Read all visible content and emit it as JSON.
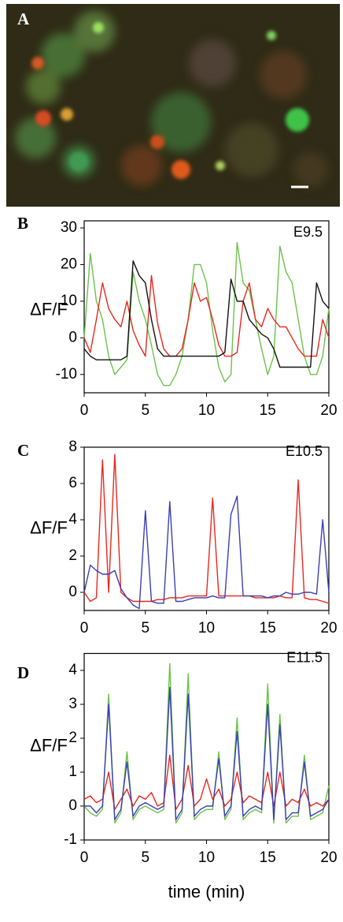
{
  "image_panel": {
    "label": "A"
  },
  "chart_data": [
    {
      "type": "line",
      "panel": "B",
      "label": "E9.5",
      "ylabel": "ΔF/F",
      "xlim": [
        0,
        20
      ],
      "xticks": [
        0,
        5,
        10,
        15,
        20
      ],
      "ylim": [
        -15,
        30
      ],
      "yticks": [
        -10,
        0,
        10,
        20,
        30
      ],
      "x": [
        0,
        0.5,
        1,
        1.5,
        2,
        2.5,
        3,
        3.5,
        4,
        4.5,
        5,
        5.5,
        6,
        6.5,
        7,
        7.5,
        8,
        8.5,
        9,
        9.5,
        10,
        10.5,
        11,
        11.5,
        12,
        12.5,
        13,
        13.5,
        14,
        14.5,
        15,
        15.5,
        16,
        16.5,
        17,
        17.5,
        18,
        18.5,
        19,
        19.5,
        20
      ],
      "series": [
        {
          "color": "#6cc24a",
          "values": [
            0,
            23,
            10,
            5,
            -5,
            -10,
            -8,
            -6,
            18,
            10,
            5,
            -2,
            -10,
            -13,
            -13,
            -10,
            -5,
            5,
            20,
            20,
            15,
            2,
            -8,
            -12,
            -10,
            26,
            15,
            13,
            5,
            -3,
            -10,
            -5,
            25,
            18,
            15,
            5,
            -5,
            -10,
            -10,
            -5,
            8
          ]
        },
        {
          "color": "#e8281e",
          "values": [
            0,
            -4,
            5,
            15,
            8,
            5,
            3,
            10,
            2,
            -2,
            -5,
            17,
            4,
            -3,
            -5,
            -5,
            -3,
            5,
            15,
            10,
            11,
            5,
            -2,
            -5,
            -5,
            -4,
            10,
            15,
            5,
            3,
            8,
            5,
            3,
            3,
            0,
            -3,
            -5,
            -5,
            -5,
            5,
            0
          ]
        },
        {
          "color": "#111111",
          "values": [
            -3,
            -5,
            -6,
            -6,
            -6,
            -6,
            -6,
            -5,
            21,
            17,
            15,
            5,
            -3,
            -5,
            -5,
            -5,
            -5,
            -5,
            -5,
            -5,
            -5,
            -5,
            -5,
            -4,
            16,
            10,
            10,
            5,
            3,
            1,
            0,
            -3,
            -8,
            -8,
            -8,
            -8,
            -8,
            -8,
            15,
            10,
            8
          ]
        }
      ]
    },
    {
      "type": "line",
      "panel": "C",
      "label": "E10.5",
      "ylabel": "ΔF/F",
      "xlim": [
        0,
        20
      ],
      "xticks": [
        0,
        5,
        10,
        15,
        20
      ],
      "ylim": [
        -1,
        8
      ],
      "yticks": [
        0,
        2,
        4,
        6,
        8
      ],
      "x": [
        0,
        0.5,
        1,
        1.5,
        2,
        2.5,
        3,
        3.5,
        4,
        4.5,
        5,
        5.5,
        6,
        6.5,
        7,
        7.5,
        8,
        8.5,
        9,
        9.5,
        10,
        10.5,
        11,
        11.5,
        12,
        12.5,
        13,
        13.5,
        14,
        14.5,
        15,
        15.5,
        16,
        16.5,
        17,
        17.5,
        18,
        18.5,
        19,
        19.5,
        20
      ],
      "series": [
        {
          "color": "#e8281e",
          "values": [
            0,
            -0.5,
            -0.3,
            7.3,
            0,
            7.6,
            0,
            -0.3,
            -0.5,
            -0.5,
            -0.5,
            -0.5,
            -0.4,
            -0.4,
            -0.3,
            -0.3,
            -0.3,
            -0.2,
            -0.2,
            -0.2,
            -0.2,
            5.2,
            -0.2,
            -0.2,
            -0.2,
            -0.2,
            -0.2,
            -0.2,
            -0.3,
            -0.3,
            -0.3,
            -0.3,
            -0.2,
            -0.3,
            -0.3,
            6.2,
            -0.3,
            -0.4,
            -0.4,
            -0.5,
            -0.6
          ]
        },
        {
          "color": "#3a3fb5",
          "values": [
            0,
            1.5,
            1.2,
            1.0,
            1.0,
            1.2,
            0.2,
            -0.3,
            -0.7,
            -0.9,
            4.5,
            -0.5,
            -0.6,
            -0.6,
            5.0,
            -0.5,
            -0.5,
            -0.4,
            -0.3,
            -0.3,
            -0.3,
            -0.2,
            -0.3,
            -0.3,
            4.3,
            5.3,
            -0.2,
            -0.2,
            -0.2,
            -0.2,
            -0.3,
            -0.2,
            -0.2,
            0,
            -0.1,
            -0.1,
            0,
            0,
            -0.1,
            4.0,
            0
          ]
        }
      ]
    },
    {
      "type": "line",
      "panel": "D",
      "label": "E11.5",
      "ylabel": "ΔF/F",
      "xlabel": "time (min)",
      "xlim": [
        0,
        20
      ],
      "xticks": [
        0,
        5,
        10,
        15,
        20
      ],
      "ylim": [
        -1,
        4.5
      ],
      "yticks": [
        -1,
        0,
        1,
        2,
        3,
        4
      ],
      "x": [
        0,
        0.5,
        1,
        1.5,
        2,
        2.5,
        3,
        3.5,
        4,
        4.5,
        5,
        5.5,
        6,
        6.5,
        7,
        7.5,
        8,
        8.5,
        9,
        9.5,
        10,
        10.5,
        11,
        11.5,
        12,
        12.5,
        13,
        13.5,
        14,
        14.5,
        15,
        15.5,
        16,
        16.5,
        17,
        17.5,
        18,
        18.5,
        19,
        19.5,
        20
      ],
      "series": [
        {
          "color": "#6cc24a",
          "values": [
            0,
            -0.2,
            -0.3,
            -0.1,
            3.3,
            -0.5,
            -0.2,
            1.6,
            -0.4,
            -0.1,
            0,
            -0.1,
            -0.2,
            -0.1,
            4.2,
            -0.5,
            -0.2,
            3.9,
            -0.4,
            -0.2,
            -0.1,
            -0.1,
            1.6,
            -0.4,
            -0.1,
            2.6,
            -0.4,
            -0.2,
            -0.1,
            -0.2,
            3.6,
            -0.5,
            2.7,
            -0.5,
            -0.3,
            -0.3,
            1.5,
            -0.4,
            -0.3,
            -0.2,
            0.6
          ]
        },
        {
          "color": "#e8281e",
          "values": [
            0.2,
            0.3,
            0.1,
            0.2,
            1.0,
            -0.1,
            0.2,
            0.5,
            0,
            0.3,
            0.2,
            0.4,
            0,
            0.1,
            1.5,
            -0.1,
            0.2,
            1.2,
            0,
            0.2,
            0.8,
            0.2,
            0.5,
            0,
            0.2,
            1.0,
            0.1,
            0.3,
            0.2,
            0.1,
            1.0,
            0,
            1.0,
            0,
            0.2,
            0.1,
            0.5,
            0,
            0.1,
            0,
            0.2
          ]
        },
        {
          "color": "#3a3fb5",
          "values": [
            0,
            0,
            -0.2,
            0,
            3.0,
            -0.4,
            -0.1,
            1.3,
            -0.3,
            0,
            0.1,
            0,
            -0.1,
            0,
            3.5,
            -0.4,
            -0.1,
            3.3,
            -0.3,
            -0.1,
            0,
            0,
            1.4,
            -0.3,
            0,
            2.2,
            -0.3,
            -0.1,
            0,
            -0.1,
            3.0,
            -0.4,
            2.4,
            -0.4,
            -0.2,
            -0.2,
            1.3,
            -0.3,
            -0.2,
            -0.1,
            0.2
          ]
        }
      ]
    }
  ]
}
